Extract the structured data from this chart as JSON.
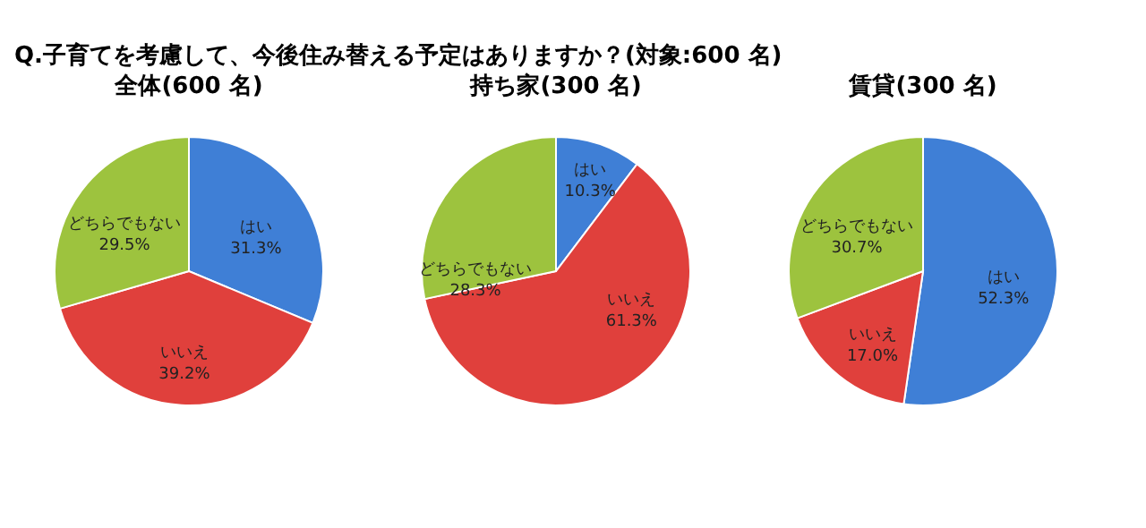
{
  "chart_data": [
    {
      "type": "pie",
      "title": "全体(600 名)",
      "annotations": [
        "Q.子育てを考慮して、今後住み替える予定はありますか？(対象:600 名)"
      ],
      "categories": [
        "はい",
        "いいえ",
        "どちらでもない"
      ],
      "values": [
        31.3,
        39.2,
        29.5
      ],
      "value_labels": [
        "31.3%",
        "39.2%",
        "29.5%"
      ],
      "colors": [
        "#3f7fd6",
        "#e0403c",
        "#9dc33e"
      ]
    },
    {
      "type": "pie",
      "title": "持ち家(300 名)",
      "categories": [
        "はい",
        "いいえ",
        "どちらでもない"
      ],
      "values": [
        10.3,
        61.3,
        28.3
      ],
      "value_labels": [
        "10.3%",
        "61.3%",
        "28.3%"
      ],
      "colors": [
        "#3f7fd6",
        "#e0403c",
        "#9dc33e"
      ]
    },
    {
      "type": "pie",
      "title": "賃貸(300 名)",
      "categories": [
        "はい",
        "いいえ",
        "どちらでもない"
      ],
      "values": [
        52.3,
        17.0,
        30.7
      ],
      "value_labels": [
        "52.3%",
        "17.0%",
        "30.7%"
      ],
      "colors": [
        "#3f7fd6",
        "#e0403c",
        "#9dc33e"
      ]
    }
  ]
}
